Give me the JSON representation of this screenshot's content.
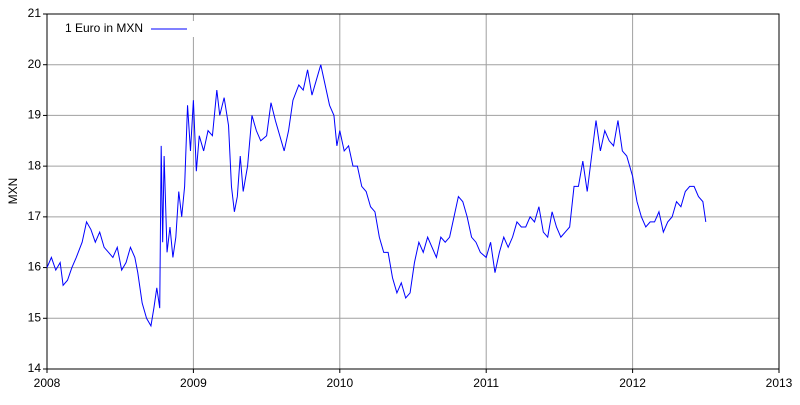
{
  "chart_data": {
    "type": "line",
    "y_label": "MXN",
    "x": [
      2008.0,
      2008.03,
      2008.06,
      2008.09,
      2008.11,
      2008.14,
      2008.17,
      2008.2,
      2008.24,
      2008.27,
      2008.3,
      2008.33,
      2008.36,
      2008.39,
      2008.42,
      2008.45,
      2008.48,
      2008.51,
      2008.54,
      2008.57,
      2008.6,
      2008.62,
      2008.65,
      2008.68,
      2008.71,
      2008.73,
      2008.75,
      2008.77,
      2008.78,
      2008.79,
      2008.8,
      2008.82,
      2008.84,
      2008.86,
      2008.88,
      2008.9,
      2008.92,
      2008.94,
      2008.96,
      2008.98,
      2009.0,
      2009.02,
      2009.04,
      2009.07,
      2009.1,
      2009.13,
      2009.16,
      2009.18,
      2009.21,
      2009.24,
      2009.26,
      2009.28,
      2009.3,
      2009.32,
      2009.34,
      2009.37,
      2009.4,
      2009.43,
      2009.46,
      2009.5,
      2009.53,
      2009.56,
      2009.59,
      2009.62,
      2009.65,
      2009.68,
      2009.72,
      2009.75,
      2009.78,
      2009.81,
      2009.84,
      2009.87,
      2009.9,
      2009.93,
      2009.96,
      2009.98,
      2010.0,
      2010.03,
      2010.06,
      2010.09,
      2010.12,
      2010.15,
      2010.18,
      2010.21,
      2010.24,
      2010.27,
      2010.3,
      2010.33,
      2010.36,
      2010.39,
      2010.42,
      2010.45,
      2010.48,
      2010.51,
      2010.54,
      2010.57,
      2010.6,
      2010.63,
      2010.66,
      2010.69,
      2010.72,
      2010.75,
      2010.78,
      2010.81,
      2010.84,
      2010.87,
      2010.9,
      2010.93,
      2010.96,
      2011.0,
      2011.03,
      2011.06,
      2011.09,
      2011.12,
      2011.15,
      2011.18,
      2011.21,
      2011.24,
      2011.27,
      2011.3,
      2011.33,
      2011.36,
      2011.39,
      2011.42,
      2011.45,
      2011.48,
      2011.51,
      2011.54,
      2011.57,
      2011.6,
      2011.63,
      2011.66,
      2011.69,
      2011.72,
      2011.75,
      2011.78,
      2011.81,
      2011.84,
      2011.87,
      2011.9,
      2011.93,
      2011.96,
      2012.0,
      2012.03,
      2012.06,
      2012.09,
      2012.12,
      2012.15,
      2012.18,
      2012.21,
      2012.24,
      2012.27,
      2012.3,
      2012.33,
      2012.36,
      2012.39,
      2012.42,
      2012.45,
      2012.48,
      2012.5
    ],
    "series": [
      {
        "name": "1 Euro in MXN",
        "color": "#0000ff",
        "values": [
          16.0,
          16.2,
          15.95,
          16.1,
          15.65,
          15.75,
          16.0,
          16.2,
          16.5,
          16.9,
          16.75,
          16.5,
          16.7,
          16.4,
          16.3,
          16.2,
          16.4,
          15.95,
          16.1,
          16.4,
          16.2,
          15.9,
          15.3,
          15.0,
          14.85,
          15.2,
          15.6,
          15.2,
          18.4,
          16.5,
          18.2,
          16.3,
          16.8,
          16.2,
          16.6,
          17.5,
          17.0,
          17.6,
          19.2,
          18.3,
          19.3,
          17.9,
          18.6,
          18.3,
          18.7,
          18.6,
          19.5,
          19.0,
          19.35,
          18.8,
          17.6,
          17.1,
          17.4,
          18.2,
          17.5,
          18.0,
          19.0,
          18.7,
          18.5,
          18.6,
          19.25,
          18.9,
          18.6,
          18.3,
          18.7,
          19.3,
          19.6,
          19.5,
          19.9,
          19.4,
          19.7,
          20.0,
          19.6,
          19.2,
          19.0,
          18.4,
          18.7,
          18.3,
          18.4,
          18.0,
          18.0,
          17.6,
          17.5,
          17.2,
          17.1,
          16.6,
          16.3,
          16.3,
          15.8,
          15.5,
          15.7,
          15.4,
          15.5,
          16.1,
          16.5,
          16.3,
          16.6,
          16.4,
          16.2,
          16.6,
          16.5,
          16.6,
          17.0,
          17.4,
          17.3,
          17.0,
          16.6,
          16.5,
          16.3,
          16.2,
          16.5,
          15.9,
          16.3,
          16.6,
          16.4,
          16.6,
          16.9,
          16.8,
          16.8,
          17.0,
          16.9,
          17.2,
          16.7,
          16.6,
          17.1,
          16.8,
          16.6,
          16.7,
          16.8,
          17.6,
          17.6,
          18.1,
          17.5,
          18.2,
          18.9,
          18.3,
          18.7,
          18.5,
          18.4,
          18.9,
          18.3,
          18.2,
          17.8,
          17.3,
          17.0,
          16.8,
          16.9,
          16.9,
          17.1,
          16.7,
          16.9,
          17.0,
          17.3,
          17.2,
          17.5,
          17.6,
          17.6,
          17.4,
          17.3,
          16.9
        ]
      }
    ],
    "xlim": [
      2008,
      2013
    ],
    "xticks": [
      2008,
      2009,
      2010,
      2011,
      2012,
      2013
    ],
    "ylim": [
      14,
      21
    ],
    "yticks": [
      14,
      15,
      16,
      17,
      18,
      19,
      20,
      21
    ],
    "grid": true,
    "legend": "top-left"
  }
}
